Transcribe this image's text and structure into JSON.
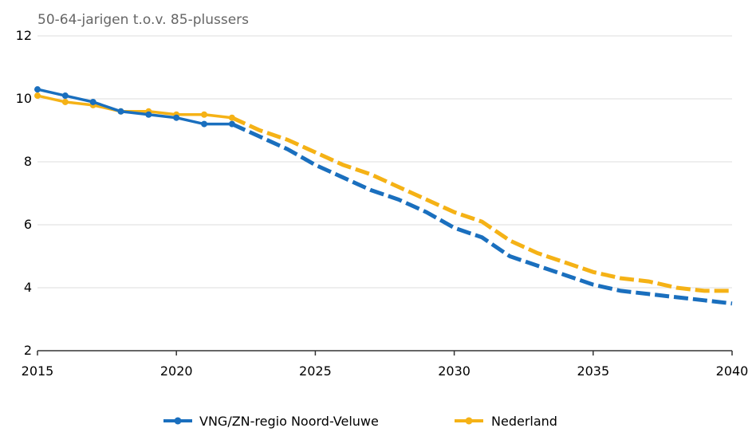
{
  "chart_data": {
    "type": "line",
    "title": "50-64-jarigen t.o.v. 85-plussers",
    "xlabel": "",
    "ylabel": "",
    "xlim": [
      2015,
      2040
    ],
    "ylim": [
      2,
      12
    ],
    "x_ticks": [
      "2015",
      "2020",
      "2025",
      "2030",
      "2035",
      "2040"
    ],
    "y_ticks": [
      "2",
      "4",
      "6",
      "8",
      "10",
      "12"
    ],
    "grid": "horizontal",
    "legend_position": "bottom",
    "observed_until": 2022,
    "series": [
      {
        "name": "VNG/ZN-regio Noord-Veluwe",
        "color": "#1a6fbe",
        "x": [
          2015,
          2016,
          2017,
          2018,
          2019,
          2020,
          2021,
          2022,
          2023,
          2024,
          2025,
          2026,
          2027,
          2028,
          2029,
          2030,
          2031,
          2032,
          2033,
          2034,
          2035,
          2036,
          2037,
          2038,
          2039,
          2040
        ],
        "values": [
          10.3,
          10.1,
          9.9,
          9.6,
          9.5,
          9.4,
          9.2,
          9.2,
          8.8,
          8.4,
          7.9,
          7.5,
          7.1,
          6.8,
          6.4,
          5.9,
          5.6,
          5.0,
          4.7,
          4.4,
          4.1,
          3.9,
          3.8,
          3.7,
          3.6,
          3.5
        ]
      },
      {
        "name": "Nederland",
        "color": "#f5b216",
        "x": [
          2015,
          2016,
          2017,
          2018,
          2019,
          2020,
          2021,
          2022,
          2023,
          2024,
          2025,
          2026,
          2027,
          2028,
          2029,
          2030,
          2031,
          2032,
          2033,
          2034,
          2035,
          2036,
          2037,
          2038,
          2039,
          2040
        ],
        "values": [
          10.1,
          9.9,
          9.8,
          9.6,
          9.6,
          9.5,
          9.5,
          9.4,
          9.0,
          8.7,
          8.3,
          7.9,
          7.6,
          7.2,
          6.8,
          6.4,
          6.1,
          5.5,
          5.1,
          4.8,
          4.5,
          4.3,
          4.2,
          4.0,
          3.9,
          3.9
        ]
      }
    ]
  }
}
